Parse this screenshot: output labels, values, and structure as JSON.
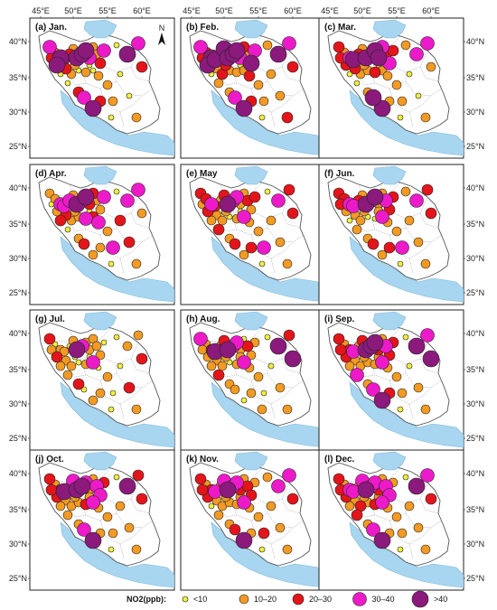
{
  "figure": {
    "lon_ticks": [
      "45°E",
      "50°E",
      "55°E",
      "60°E"
    ],
    "lat_ticks": [
      "40°N",
      "35°N",
      "30°N",
      "25°N"
    ],
    "north_label": "N"
  },
  "panels": [
    {
      "id": "jan",
      "label": "(a) Jan."
    },
    {
      "id": "feb",
      "label": "(b) Feb."
    },
    {
      "id": "mar",
      "label": "(c) Mar."
    },
    {
      "id": "apr",
      "label": "(d) Apr."
    },
    {
      "id": "may",
      "label": "(e) May"
    },
    {
      "id": "jun",
      "label": "(f) Jun."
    },
    {
      "id": "jul",
      "label": "(g) Jul."
    },
    {
      "id": "aug",
      "label": "(h) Aug."
    },
    {
      "id": "sep",
      "label": "(i) Sep."
    },
    {
      "id": "oct",
      "label": "(j) Oct."
    },
    {
      "id": "nov",
      "label": "(k) Nov."
    },
    {
      "id": "dec",
      "label": "(l) Dec."
    }
  ],
  "legend": {
    "title": "NO2(ppb):",
    "classes": [
      {
        "label": "<10",
        "color": "#f2ee3c"
      },
      {
        "label": "10–20",
        "color": "#f39a22"
      },
      {
        "label": "20–30",
        "color": "#e4151a"
      },
      {
        "label": "30–40",
        "color": "#ec1ac8"
      },
      {
        "label": ">40",
        "color": "#8b1a7c"
      }
    ]
  },
  "colors": {
    "water": "#a8d6f0",
    "land": "#ffffff",
    "border": "#9a9a9a"
  }
}
